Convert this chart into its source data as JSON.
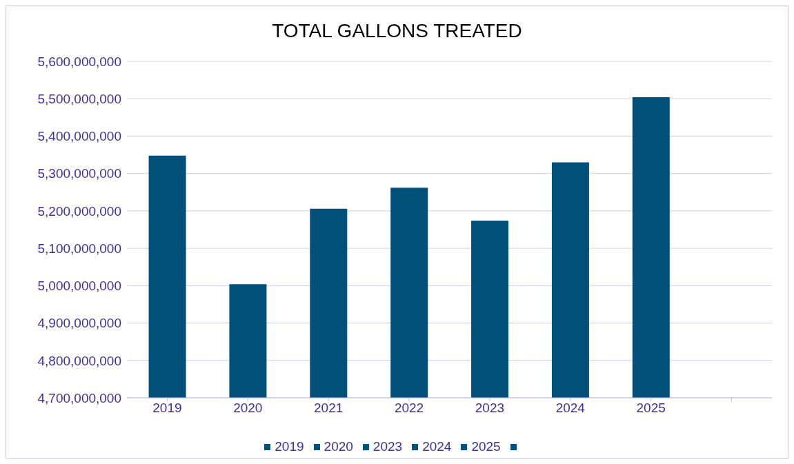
{
  "chart_data": {
    "type": "bar",
    "title": "TOTAL GALLONS TREATED",
    "stacked": true,
    "categories": [
      "2019",
      "2020",
      "2021",
      "2022",
      "2023",
      "2024",
      "2025",
      null
    ],
    "series": [
      {
        "name": "2019",
        "color": "#00507a",
        "values": [
          5348000000,
          null,
          null,
          null,
          null,
          null,
          null,
          null
        ]
      },
      {
        "name": "2020",
        "color": "#00507a",
        "values": [
          null,
          5004000000,
          null,
          null,
          null,
          null,
          null,
          null
        ]
      },
      {
        "color": "#00507a",
        "values": [
          null,
          null,
          5206000000,
          null,
          null,
          null,
          null,
          null
        ]
      },
      {
        "color": "#00507a",
        "values": [
          null,
          null,
          null,
          5262000000,
          null,
          null,
          null,
          null
        ]
      },
      {
        "name": "2023",
        "color": "#00507a",
        "values": [
          null,
          null,
          null,
          null,
          5174000000,
          null,
          null,
          null
        ]
      },
      {
        "name": "2024",
        "color": "#00507a",
        "values": [
          null,
          null,
          null,
          null,
          null,
          5330000000,
          null,
          null
        ]
      },
      {
        "name": "2025",
        "color": "#00507a",
        "values": [
          null,
          null,
          null,
          null,
          null,
          null,
          5504000000,
          null
        ]
      },
      {
        "color": "#00507a",
        "values": [
          null,
          null,
          null,
          null,
          null,
          null,
          null,
          null
        ]
      }
    ],
    "ylim": [
      4700000000,
      5600000000
    ],
    "yticks": [
      {
        "value": 4700000000,
        "label": "4,700,000,000"
      },
      {
        "value": 4800000000,
        "label": "4,800,000,000"
      },
      {
        "value": 4900000000,
        "label": "4,900,000,000"
      },
      {
        "value": 5000000000,
        "label": "5,000,000,000"
      },
      {
        "value": 5100000000,
        "label": "5,100,000,000"
      },
      {
        "value": 5200000000,
        "label": "5,200,000,000"
      },
      {
        "value": 5300000000,
        "label": "5,300,000,000"
      },
      {
        "value": 5400000000,
        "label": "5,400,000,000"
      },
      {
        "value": 5500000000,
        "label": "5,500,000,000"
      },
      {
        "value": 5600000000,
        "label": "5,600,000,000"
      }
    ],
    "grid": "y",
    "legend": "bottom"
  }
}
